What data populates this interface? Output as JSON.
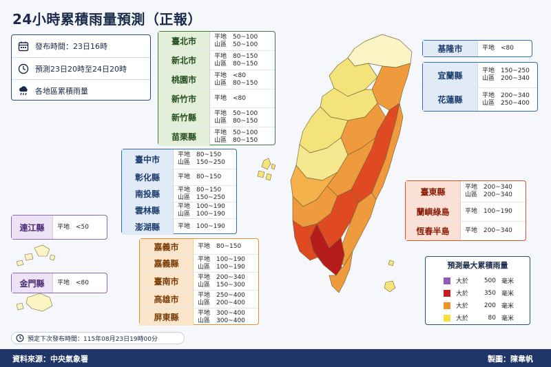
{
  "title": "24小時累積雨量預測（正報）",
  "info": {
    "publish": "發布時間：23日16時",
    "period": "預測23日20時至24日20時",
    "caption": "各地區累積雨量"
  },
  "groups": {
    "north": [
      {
        "name": "臺北市",
        "v1": "平地　50~100",
        "v2": "山區　50~100"
      },
      {
        "name": "新北市",
        "v1": "平地　80~150",
        "v2": "山區　80~150"
      },
      {
        "name": "桃園市",
        "v1": "平地　<80",
        "v2": "山區　80~150"
      },
      {
        "name": "新竹市",
        "v1": "平地　<80",
        "v2": ""
      },
      {
        "name": "新竹縣",
        "v1": "平地　50~100",
        "v2": "山區　80~150"
      },
      {
        "name": "苗栗縣",
        "v1": "平地　50~100",
        "v2": "山區　80~150"
      }
    ],
    "central": [
      {
        "name": "臺中市",
        "v1": "平地　80~150",
        "v2": "山區　150~250"
      },
      {
        "name": "彰化縣",
        "v1": "平地　80~150",
        "v2": ""
      },
      {
        "name": "南投縣",
        "v1": "平地　80~150",
        "v2": "山區　150~250"
      },
      {
        "name": "雲林縣",
        "v1": "平地　100~190",
        "v2": "山區　100~190"
      },
      {
        "name": "澎湖縣",
        "v1": "平地　100~190",
        "v2": ""
      }
    ],
    "south": [
      {
        "name": "嘉義市",
        "v1": "平地　80~150",
        "v2": ""
      },
      {
        "name": "嘉義縣",
        "v1": "平地　100~190",
        "v2": "山區　100~190"
      },
      {
        "name": "臺南市",
        "v1": "平地　200~340",
        "v2": "山區　150~300"
      },
      {
        "name": "高雄市",
        "v1": "平地　250~400",
        "v2": "山區　200~400"
      },
      {
        "name": "屏東縣",
        "v1": "平地　300~400",
        "v2": "山區　300~400"
      }
    ],
    "northeast": [
      {
        "name": "基隆市",
        "v1": "平地　<80",
        "v2": ""
      }
    ],
    "east": [
      {
        "name": "宜蘭縣",
        "v1": "平地　150~250",
        "v2": "山區　200~340"
      },
      {
        "name": "花蓮縣",
        "v1": "平地　200~340",
        "v2": "山區　250~400"
      }
    ],
    "southeast": [
      {
        "name": "臺東縣",
        "v1": "平地　200~340",
        "v2": "山區　200~340"
      },
      {
        "name": "蘭嶼綠島",
        "v1": "平地　100~190",
        "v2": ""
      },
      {
        "name": "恆春半島",
        "v1": "平地　200~340",
        "v2": ""
      }
    ],
    "islands_lienchiang": [
      {
        "name": "連江縣",
        "v1": "平地　<50",
        "v2": ""
      }
    ],
    "islands_kinmen": [
      {
        "name": "金門縣",
        "v1": "平地　<80",
        "v2": ""
      }
    ]
  },
  "legend": {
    "title": "預測最大累積雨量",
    "items": [
      {
        "label": "大於",
        "value": "500",
        "unit": "毫米",
        "color": "#8e5bb6"
      },
      {
        "label": "大於",
        "value": "350",
        "unit": "毫米",
        "color": "#c81e1e"
      },
      {
        "label": "大於",
        "value": "200",
        "unit": "毫米",
        "color": "#f0912a"
      },
      {
        "label": "大於",
        "value": "80",
        "unit": "毫米",
        "color": "#f5df3c"
      }
    ]
  },
  "next_publish": "預定下次發布時間：115年08月23日19時00分",
  "footer": {
    "source": "資料來源：中央氣象署",
    "maker": "製圖：陳韋帆"
  },
  "colors": {
    "pale": "#fbf4c4",
    "yellow": "#f3e37a",
    "orange": "#f09a3e",
    "red": "#df4a22",
    "darkred": "#b71c1c",
    "navy": "#1f3566"
  }
}
